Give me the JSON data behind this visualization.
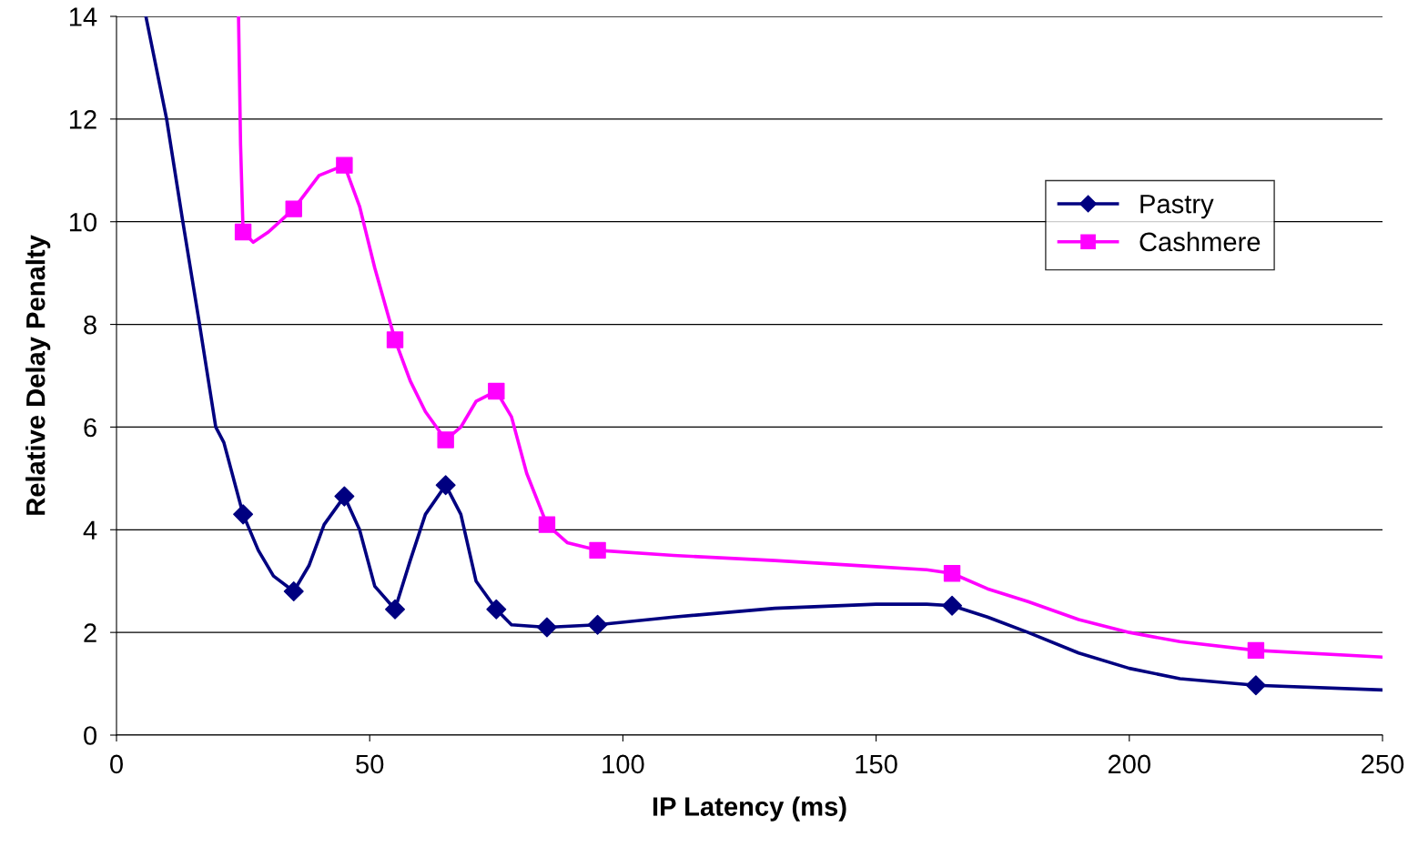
{
  "chart_data": {
    "type": "line",
    "xlabel": "IP Latency (ms)",
    "ylabel": "Relative Delay Penalty",
    "xlim": [
      0,
      250
    ],
    "xticks": [
      0,
      50,
      100,
      150,
      200,
      250
    ],
    "ylim": [
      0,
      14
    ],
    "yticks": [
      0,
      2,
      4,
      6,
      8,
      10,
      12,
      14
    ],
    "grid": "y",
    "legend": "right",
    "series": [
      {
        "name": "Pastry",
        "marker": "none",
        "color": "#000080",
        "x": [
          5.8,
          9.9,
          13.1,
          16.4,
          19.6,
          21.2,
          25,
          28,
          31,
          35,
          38,
          41,
          45,
          48,
          51,
          55,
          58,
          61,
          65,
          68,
          71,
          75,
          78,
          85,
          95,
          110,
          130,
          150,
          160,
          165,
          172,
          180,
          190,
          200,
          210,
          225,
          250
        ],
        "values": [
          14,
          12,
          10,
          8,
          6,
          5.7,
          4.3,
          3.6,
          3.1,
          2.8,
          3.3,
          4.1,
          4.65,
          4.0,
          2.9,
          2.45,
          3.4,
          4.3,
          4.87,
          4.3,
          3.0,
          2.45,
          2.15,
          2.1,
          2.15,
          2.3,
          2.47,
          2.55,
          2.55,
          2.52,
          2.3,
          2.0,
          1.6,
          1.3,
          1.1,
          0.97,
          0.88
        ]
      },
      {
        "type": "scatter",
        "marker": "diamond",
        "color": "#000080",
        "x": [
          25,
          35,
          45,
          55,
          65,
          75,
          85,
          95,
          165,
          225
        ],
        "values": [
          4.3,
          2.8,
          4.65,
          2.45,
          4.87,
          2.45,
          2.1,
          2.15,
          2.52,
          0.97
        ]
      },
      {
        "name": "Cashmere",
        "marker": "none",
        "color": "#ff00ff",
        "x": [
          24.1,
          24.5,
          25,
          27,
          30,
          35,
          40,
          45,
          48,
          51,
          55,
          58,
          61,
          65,
          68,
          71,
          75,
          78,
          81,
          85,
          89,
          95,
          110,
          130,
          150,
          160,
          165,
          172,
          180,
          190,
          200,
          210,
          225,
          250
        ],
        "values": [
          14,
          11.5,
          9.8,
          9.6,
          9.8,
          10.25,
          10.9,
          11.1,
          10.3,
          9.1,
          7.7,
          6.9,
          6.3,
          5.75,
          6.0,
          6.5,
          6.7,
          6.2,
          5.1,
          4.1,
          3.75,
          3.6,
          3.5,
          3.4,
          3.28,
          3.22,
          3.15,
          2.85,
          2.6,
          2.25,
          2.0,
          1.82,
          1.65,
          1.52
        ]
      },
      {
        "type": "scatter",
        "marker": "square",
        "color": "#ff00ff",
        "x": [
          25,
          35,
          45,
          55,
          65,
          75,
          85,
          95,
          165,
          225
        ],
        "values": [
          9.8,
          10.25,
          11.1,
          7.7,
          5.75,
          6.7,
          4.1,
          3.6,
          3.15,
          1.65
        ]
      }
    ]
  }
}
